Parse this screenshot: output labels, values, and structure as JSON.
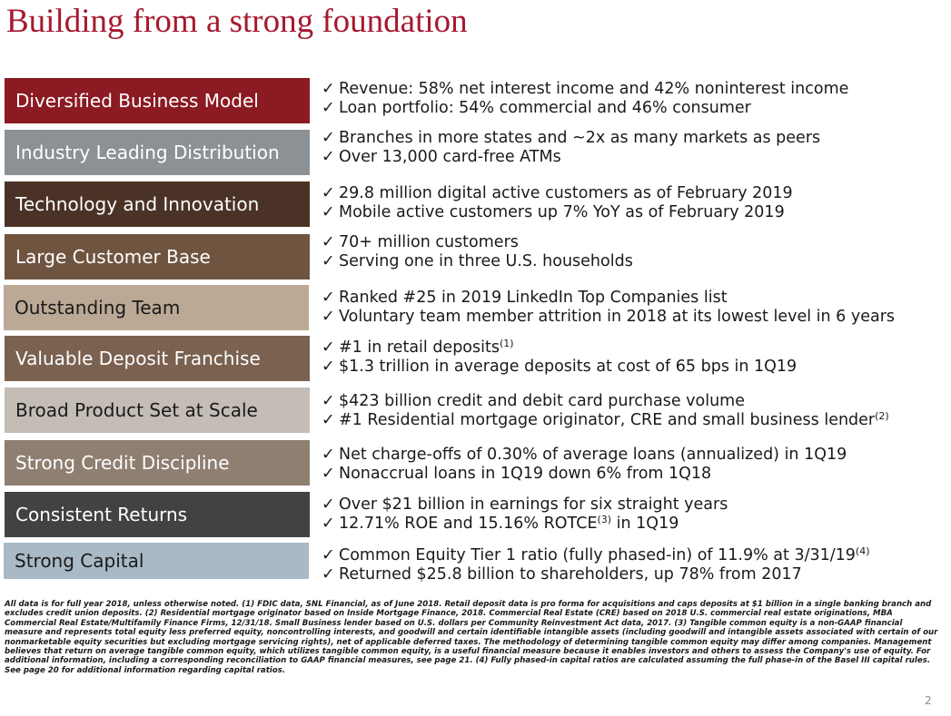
{
  "title": "Building from a strong foundation",
  "rows": [
    {
      "label": "Diversified Business Model",
      "color": "#8b1a22",
      "bullets": [
        {
          "text": "Revenue: 58% net interest income and 42% noninterest income",
          "sup": ""
        },
        {
          "text": "Loan portfolio: 54% commercial and 46% consumer",
          "sup": ""
        }
      ]
    },
    {
      "label": "Industry Leading Distribution",
      "color": "#8c9196",
      "bullets": [
        {
          "text": "Branches in more states and ~2x as many markets as peers",
          "sup": ""
        },
        {
          "text": "Over 13,000 card-free ATMs",
          "sup": ""
        }
      ]
    },
    {
      "label": "Technology and Innovation",
      "color": "#4a3326",
      "bullets": [
        {
          "text": "29.8 million digital active customers as of February 2019",
          "sup": ""
        },
        {
          "text": "Mobile active customers up 7% YoY as of February 2019",
          "sup": ""
        }
      ]
    },
    {
      "label": "Large Customer Base",
      "color": "#6f5440",
      "bullets": [
        {
          "text": "70+ million customers",
          "sup": ""
        },
        {
          "text": "Serving one in three U.S. households",
          "sup": ""
        }
      ]
    },
    {
      "label": "Outstanding Team",
      "color": "#bba996",
      "bullets": [
        {
          "text": "Ranked #25 in 2019 LinkedIn Top Companies list",
          "sup": ""
        },
        {
          "text": "Voluntary team member attrition in 2018 at its lowest level in 6 years",
          "sup": ""
        }
      ]
    },
    {
      "label": "Valuable Deposit Franchise",
      "color": "#7a6150",
      "bullets": [
        {
          "text": "#1 in retail deposits",
          "sup": "(1)"
        },
        {
          "text": "$1.3 trillion in average deposits at cost of 65 bps in 1Q19",
          "sup": ""
        }
      ]
    },
    {
      "label": "Broad Product Set at Scale",
      "color": "#c4bdb6",
      "bullets": [
        {
          "text": "$423 billion credit and debit card purchase volume",
          "sup": ""
        },
        {
          "text": "#1 Residential mortgage originator, CRE and small business lender",
          "sup": "(2)"
        }
      ]
    },
    {
      "label": "Strong Credit Discipline",
      "color": "#8e7f71",
      "bullets": [
        {
          "text": "Net charge-offs of 0.30% of average loans (annualized) in 1Q19",
          "sup": ""
        },
        {
          "text": "Nonaccrual loans in 1Q19 down 6% from 1Q18",
          "sup": ""
        }
      ]
    },
    {
      "label": "Consistent Returns",
      "color": "#404244",
      "bullets": [
        {
          "text": "Over $21 billion in earnings for six straight years",
          "sup": ""
        },
        {
          "text": "12.71% ROE and 15.16% ROTCE",
          "sup": "(3)",
          "after": " in 1Q19"
        }
      ]
    },
    {
      "label": "Strong Capital",
      "color": "#a9b9c6",
      "bullets": [
        {
          "text": "Common Equity Tier 1 ratio (fully phased-in) of 11.9% at 3/31/19",
          "sup": "(4)"
        },
        {
          "text": "Returned $25.8 billion to shareholders, up 78% from 2017",
          "sup": ""
        }
      ]
    }
  ],
  "footnote": "All data is for full year 2018, unless otherwise noted. (1) FDIC data, SNL Financial, as of June 2018.  Retail deposit data is pro forma for acquisitions and caps deposits at $1 billion in a single banking branch and excludes credit union deposits. (2) Residential mortgage originator based on Inside Mortgage Finance, 2018. Commercial Real Estate (CRE) based on 2018 U.S. commercial real estate originations, MBA Commercial Real Estate/Multifamily Finance Firms, 12/31/18. Small Business lender based on U.S. dollars per Community Reinvestment Act data, 2017. (3) Tangible common equity is a non-GAAP financial measure and represents total equity less preferred equity, noncontrolling interests, and goodwill and certain identifiable intangible assets (including goodwill and intangible assets associated with certain of our nonmarketable equity securities but excluding mortgage servicing rights), net of applicable deferred taxes. The methodology of determining tangible common equity may differ among companies. Management believes that return on average tangible common equity, which utilizes tangible common equity, is a useful financial measure because it enables investors and others to assess the Company's use of equity. For additional information, including a corresponding reconciliation to GAAP financial measures, see page 21. (4) Fully phased-in capital ratios are calculated assuming the full phase-in of the Basel III capital rules.  See page 20 for additional information regarding capital ratios.",
  "page_number": "2",
  "check_mark": "✓"
}
